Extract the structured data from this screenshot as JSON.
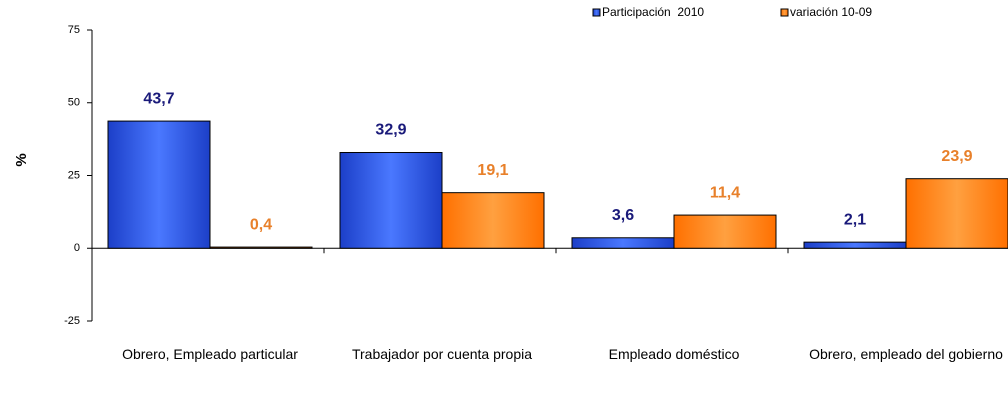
{
  "chart_data": {
    "type": "bar",
    "categories": [
      "Obrero, Empleado particular",
      "Trabajador por cuenta propia",
      "Empleado doméstico",
      "Obrero, empleado del gobierno"
    ],
    "series": [
      {
        "name": "Participación  2010",
        "color": "#2f56e0",
        "label_color": "#1a1a7a",
        "values": [
          43.7,
          32.9,
          3.6,
          2.1
        ],
        "value_labels": [
          "43,7",
          "32,9",
          "3,6",
          "2,1"
        ]
      },
      {
        "name": "variación 10-09",
        "color": "#ff8000",
        "label_color": "#e8802a",
        "values": [
          0.4,
          19.1,
          11.4,
          23.9
        ],
        "value_labels": [
          "0,4",
          "19,1",
          "11,4",
          "23,9"
        ]
      }
    ],
    "ylabel": "%",
    "ylim": [
      -25,
      75
    ],
    "yticks": [
      -25,
      0,
      25,
      50,
      75
    ]
  }
}
